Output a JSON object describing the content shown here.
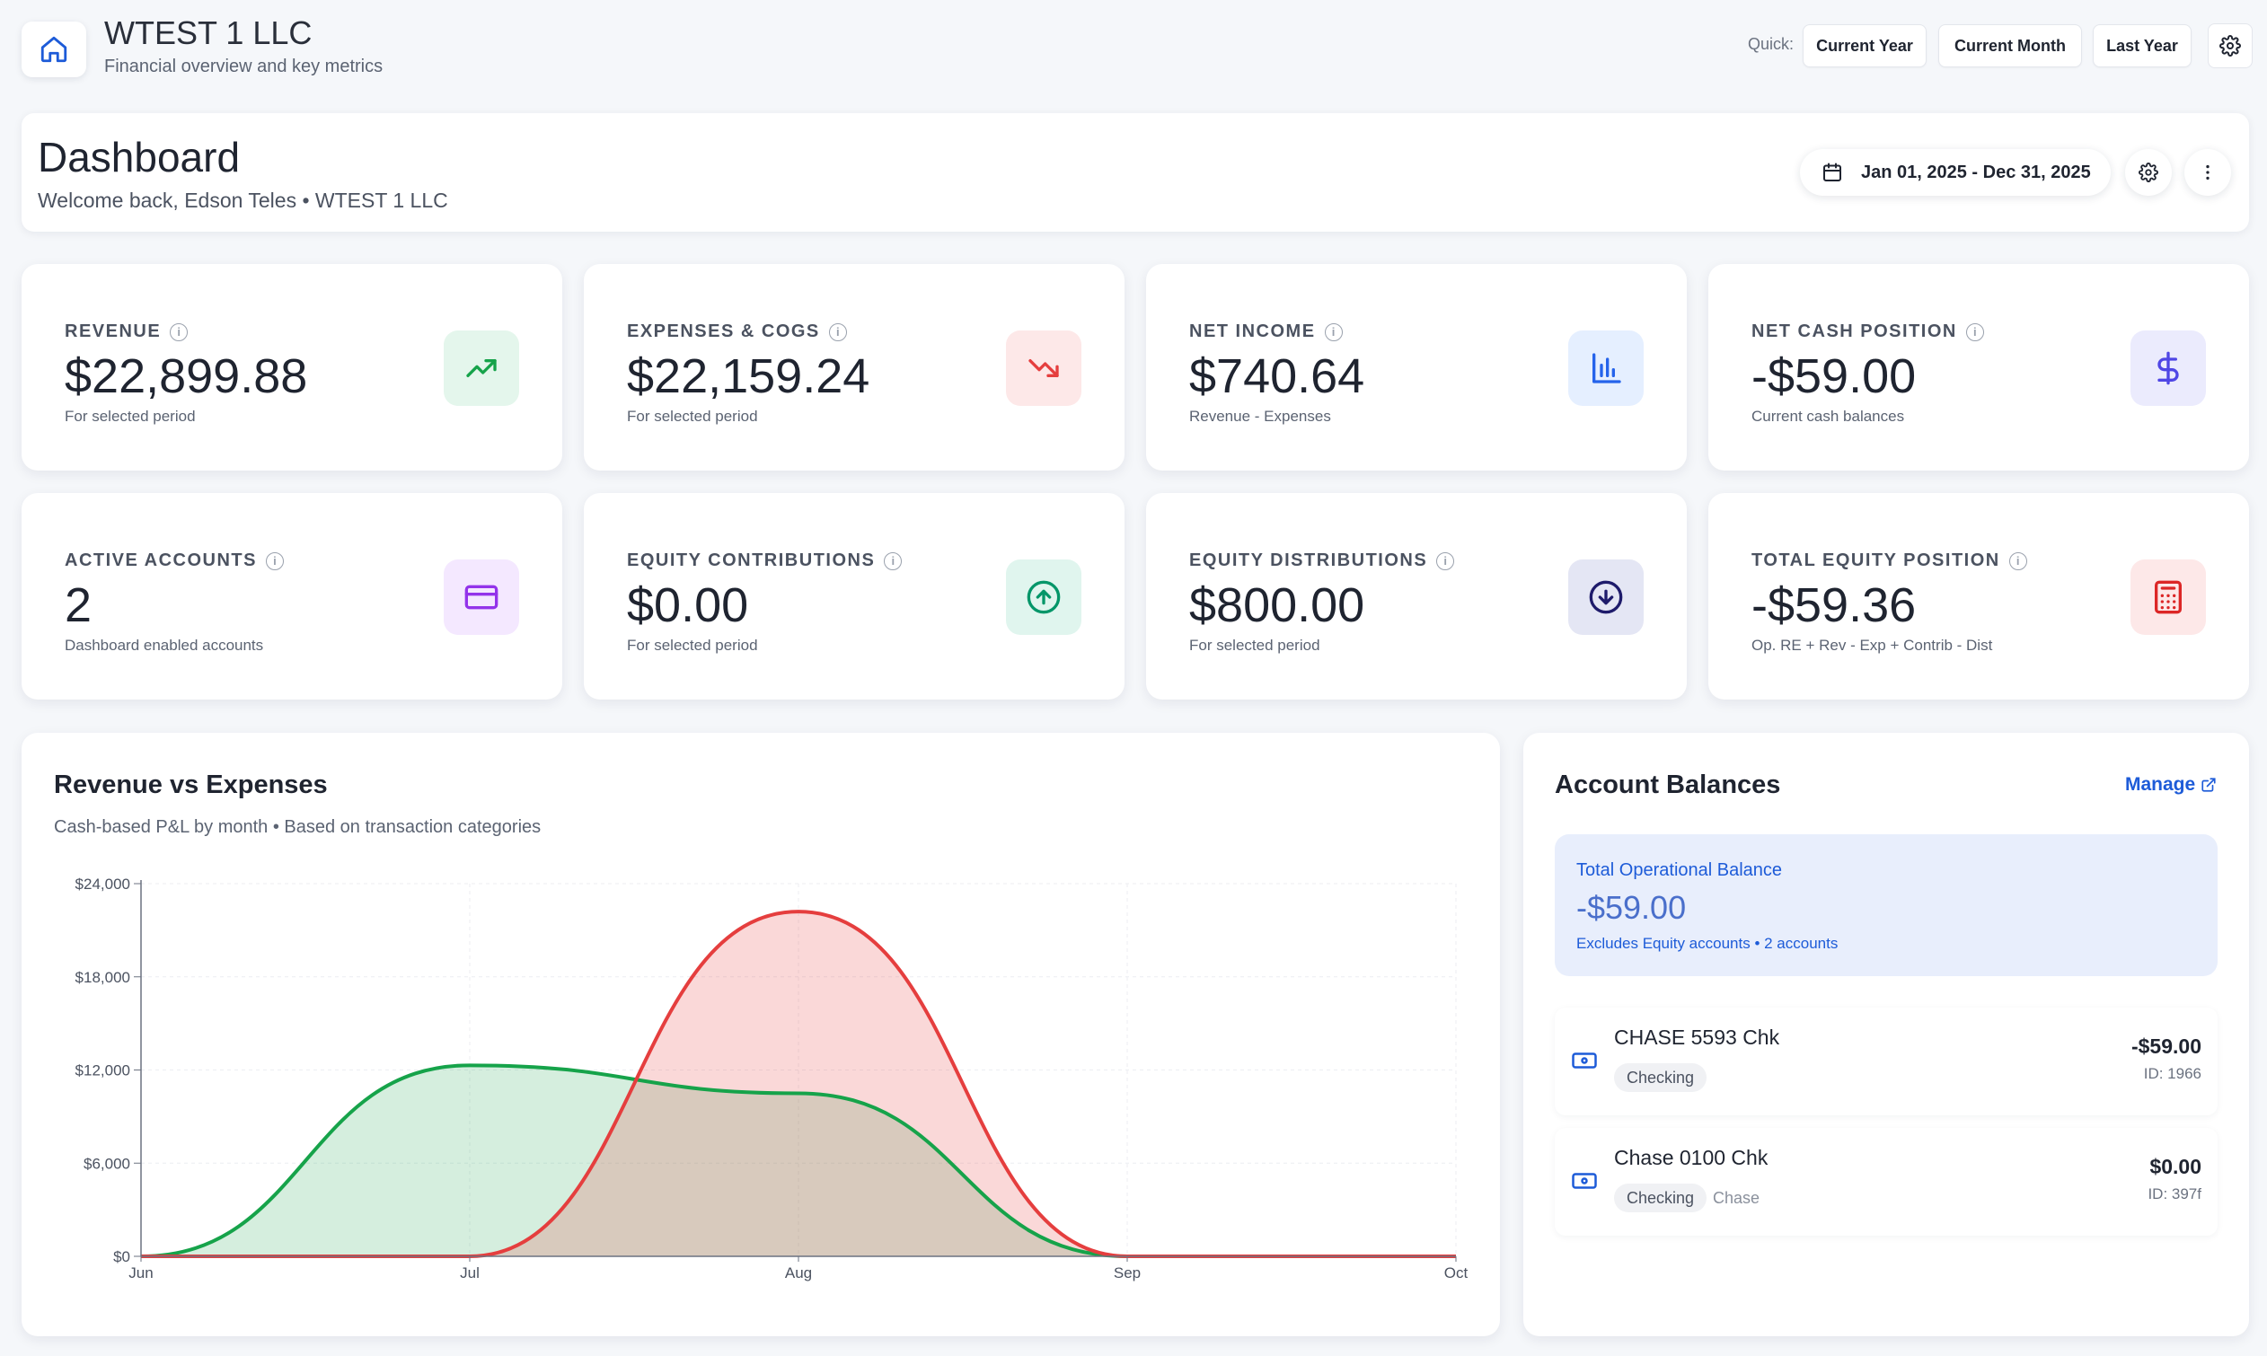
{
  "header": {
    "company": "WTEST 1 LLC",
    "subtitle": "Financial overview and key metrics",
    "quick_label": "Quick:",
    "quick_buttons": [
      "Current Year",
      "Current Month",
      "Last Year"
    ]
  },
  "dashboard": {
    "title": "Dashboard",
    "welcome": "Welcome back, Edson Teles • WTEST 1 LLC",
    "date_range": "Jan 01, 2025 - Dec 31, 2025"
  },
  "kpis": [
    {
      "label": "REVENUE",
      "value": "$22,899.88",
      "sub": "For selected period",
      "icon": "trending-up-icon",
      "icon_color": "#16a34a",
      "icon_bg": "#e4f6ec"
    },
    {
      "label": "EXPENSES & COGS",
      "value": "$22,159.24",
      "sub": "For selected period",
      "icon": "trending-down-icon",
      "icon_color": "#e53e3e",
      "icon_bg": "#fde8e8"
    },
    {
      "label": "NET INCOME",
      "value": "$740.64",
      "sub": "Revenue - Expenses",
      "icon": "bar-chart-icon",
      "icon_color": "#2563eb",
      "icon_bg": "#e5efff"
    },
    {
      "label": "NET CASH POSITION",
      "value": "-$59.00",
      "sub": "Current cash balances",
      "icon": "dollar-icon",
      "icon_color": "#4f46e5",
      "icon_bg": "#ebebfd"
    },
    {
      "label": "ACTIVE ACCOUNTS",
      "value": "2",
      "sub": "Dashboard enabled accounts",
      "icon": "credit-card-icon",
      "icon_color": "#9333ea",
      "icon_bg": "#f4e8ff"
    },
    {
      "label": "EQUITY CONTRIBUTIONS",
      "value": "$0.00",
      "sub": "For selected period",
      "icon": "arrow-up-circle-icon",
      "icon_color": "#059669",
      "icon_bg": "#e0f5ee"
    },
    {
      "label": "EQUITY DISTRIBUTIONS",
      "value": "$800.00",
      "sub": "For selected period",
      "icon": "arrow-down-circle-icon",
      "icon_color": "#1e1b6b",
      "icon_bg": "#e4e6f4"
    },
    {
      "label": "TOTAL EQUITY POSITION",
      "value": "-$59.36",
      "sub": "Op. RE + Rev - Exp + Contrib - Dist",
      "icon": "calculator-icon",
      "icon_color": "#dc2626",
      "icon_bg": "#fde8e8"
    }
  ],
  "chart": {
    "title": "Revenue vs Expenses",
    "subtitle": "Cash-based P&L by month • Based on transaction categories"
  },
  "chart_data": {
    "type": "area",
    "x": [
      "Jun",
      "Jul",
      "Aug",
      "Sep",
      "Oct"
    ],
    "ylim": [
      0,
      24000
    ],
    "yticks": [
      "$0",
      "$6,000",
      "$12,000",
      "$18,000",
      "$24,000"
    ],
    "grid": true,
    "series": [
      {
        "values": [
          0,
          12300,
          10500,
          0,
          0
        ],
        "color": "#16a34a"
      },
      {
        "values": [
          0,
          0,
          22200,
          0,
          0
        ],
        "color": "#e53e3e"
      }
    ]
  },
  "accounts": {
    "title": "Account Balances",
    "manage": "Manage",
    "total_label": "Total Operational Balance",
    "total_value": "-$59.00",
    "total_note": "Excludes Equity accounts • 2 accounts",
    "items": [
      {
        "name": "CHASE 5593 Chk",
        "type": "Checking",
        "bank": "",
        "amount": "-$59.00",
        "id": "ID: 1966"
      },
      {
        "name": "Chase 0100 Chk",
        "type": "Checking",
        "bank": "Chase",
        "amount": "$0.00",
        "id": "ID: 397f"
      }
    ]
  }
}
